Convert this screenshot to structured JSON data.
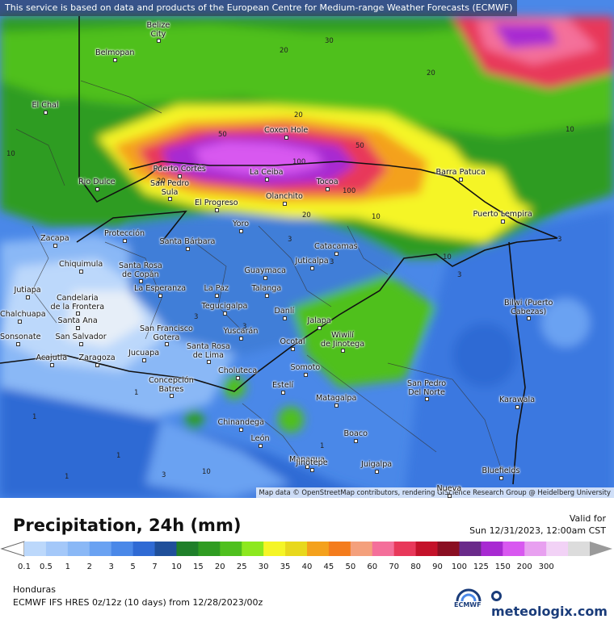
{
  "header": {
    "disclaimer": "This service is based on data and products of the European Centre for Medium-range Weather Forecasts (ECMWF)"
  },
  "attribution": "Map data © OpenStreetMap contributors, rendering GIScience Research Group @ Heidelberg University",
  "title": "Precipitation, 24h (mm)",
  "valid_label": "Valid for",
  "valid_time": "Sun 12/31/2023, 12:00am CST",
  "region": "Honduras",
  "model_info": "ECMWF IFS HRES 0z/12z (10 days) from 12/28/2023/00z",
  "ecmwf_logo_text": "ECMWF",
  "brand": "meteologix.com",
  "legend": {
    "ticks": [
      "0.1",
      "0.5",
      "1",
      "2",
      "3",
      "5",
      "7",
      "10",
      "15",
      "20",
      "25",
      "30",
      "35",
      "40",
      "45",
      "50",
      "60",
      "70",
      "80",
      "90",
      "100",
      "125",
      "150",
      "200",
      "300"
    ],
    "colors": [
      "#bcd8fb",
      "#a4c8f9",
      "#8ab8f6",
      "#6aa2f2",
      "#4a88e8",
      "#2f6ad4",
      "#1f4f9a",
      "#1f7f2a",
      "#2f9c22",
      "#4fc01e",
      "#8de81e",
      "#f5f526",
      "#e8d81c",
      "#f4a11c",
      "#f47c1c",
      "#f4a07c",
      "#f46f9a",
      "#e8385a",
      "#c4122a",
      "#8a0f22",
      "#6a2a8a",
      "#a82ad2",
      "#d858f0",
      "#e8a0f0",
      "#f2d2f6",
      "#dcdcdc"
    ]
  },
  "cities": [
    {
      "name": "Belize\nCity"
    },
    {
      "name": "Belmopan"
    },
    {
      "name": "El Chal"
    },
    {
      "name": "Rio Dulce"
    },
    {
      "name": "Puerto Cortés"
    },
    {
      "name": "La Ceiba"
    },
    {
      "name": "Coxen Hole"
    },
    {
      "name": "San Pedro\nSula"
    },
    {
      "name": "Tocoa"
    },
    {
      "name": "Barra Patuca"
    },
    {
      "name": "El Progreso"
    },
    {
      "name": "Olanchito"
    },
    {
      "name": "Puerto Lempira"
    },
    {
      "name": "Zacapa"
    },
    {
      "name": "Protección"
    },
    {
      "name": "Yoro"
    },
    {
      "name": "Santa Bárbara"
    },
    {
      "name": "Catacamas"
    },
    {
      "name": "Chiquimula"
    },
    {
      "name": "Santa Rosa\nde Copán"
    },
    {
      "name": "Guaymaca"
    },
    {
      "name": "Juticalpa"
    },
    {
      "name": "Jutiapa"
    },
    {
      "name": "Candelaria\nde la Frontera"
    },
    {
      "name": "La Esperanza"
    },
    {
      "name": "La Paz"
    },
    {
      "name": "Talanga"
    },
    {
      "name": "Bilwi (Puerto\nCabezas)"
    },
    {
      "name": "Tegucigalpa"
    },
    {
      "name": "Danlí"
    },
    {
      "name": "Chalchuapa"
    },
    {
      "name": "Santa Ana"
    },
    {
      "name": "San Francisco\nGotera"
    },
    {
      "name": "Jalapa"
    },
    {
      "name": "Sonsonate"
    },
    {
      "name": "San Salvador"
    },
    {
      "name": "Yuscarán"
    },
    {
      "name": "Wiwilí\nde Jinotega"
    },
    {
      "name": "Ocotal"
    },
    {
      "name": "Santa Rosa\nde Lima"
    },
    {
      "name": "Acajutla"
    },
    {
      "name": "Zaragoza"
    },
    {
      "name": "Jucuapa"
    },
    {
      "name": "Somoto"
    },
    {
      "name": "Choluteca"
    },
    {
      "name": "Concepción\nBatres"
    },
    {
      "name": "San Pedro\nDel Norte"
    },
    {
      "name": "Estelí"
    },
    {
      "name": "Matagalpa"
    },
    {
      "name": "Karawala"
    },
    {
      "name": "Chinandega"
    },
    {
      "name": "León"
    },
    {
      "name": "Boaco"
    },
    {
      "name": "Managua"
    },
    {
      "name": "Juigalpa"
    },
    {
      "name": "Bluefields"
    },
    {
      "name": "Jinotepe"
    },
    {
      "name": "Nueva"
    }
  ],
  "contour_labels": [
    "30",
    "20",
    "20",
    "10",
    "20",
    "50",
    "50",
    "100",
    "100",
    "20",
    "20",
    "10",
    "10",
    "3",
    "3",
    "3",
    "3",
    "3",
    "3",
    "10",
    "1",
    "1",
    "1",
    "3",
    "10",
    "1",
    "1"
  ]
}
